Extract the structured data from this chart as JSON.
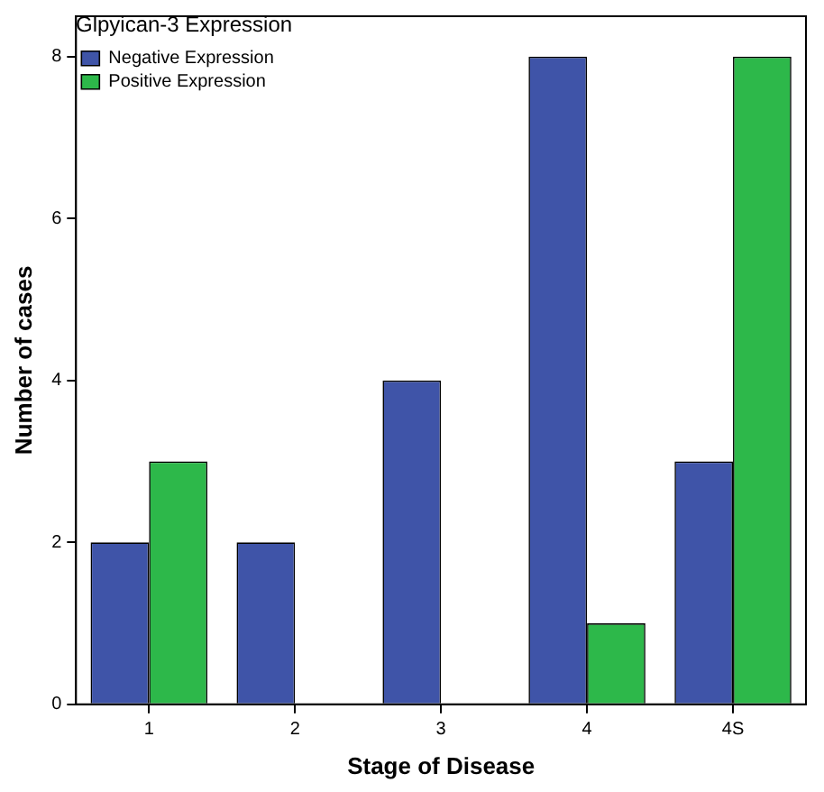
{
  "chart_data": {
    "type": "bar",
    "xlabel": "Stage of Disease",
    "ylabel": "Number of cases",
    "legend_title": "Glpyican-3 Expression",
    "categories": [
      "1",
      "2",
      "3",
      "4",
      "4S"
    ],
    "series": [
      {
        "name": "Negative Expression",
        "color": "#3f54a8",
        "values": [
          2,
          2,
          4,
          8,
          3
        ]
      },
      {
        "name": "Positive Expression",
        "color": "#2db84a",
        "values": [
          3,
          0,
          0,
          1,
          8
        ]
      }
    ],
    "ylim": [
      0,
      8.5
    ],
    "yticks": [
      0,
      2,
      4,
      6,
      8
    ],
    "grid": false,
    "legend": "top left"
  }
}
